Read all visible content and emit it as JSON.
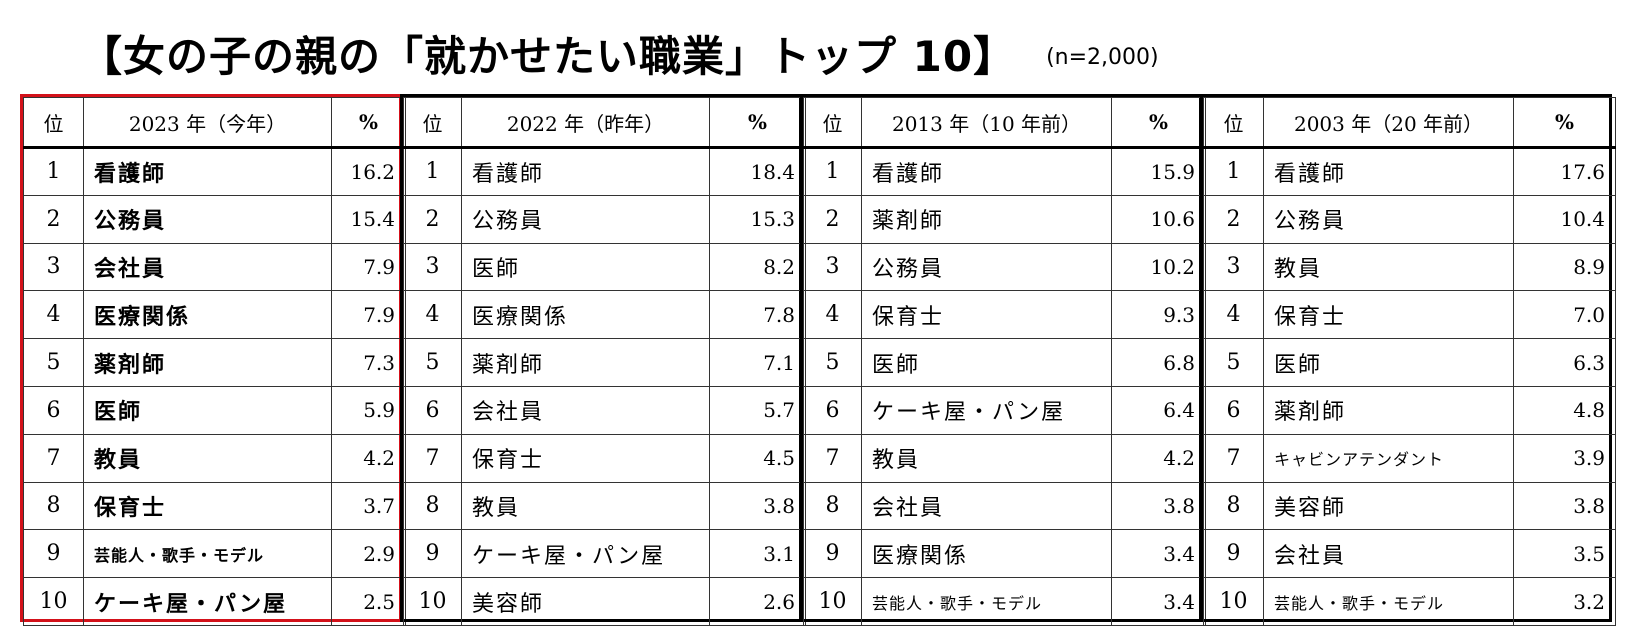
{
  "title": "【女の子の親の「就かせたい職業」トップ 10】",
  "sample": "(n=2,000)",
  "header": {
    "rank": "位",
    "percent": "%"
  },
  "tables": [
    {
      "year_label": "2023 年（今年）",
      "rows": [
        {
          "rank": "1",
          "job": "看護師",
          "pct": "16.2"
        },
        {
          "rank": "2",
          "job": "公務員",
          "pct": "15.4"
        },
        {
          "rank": "3",
          "job": "会社員",
          "pct": "7.9"
        },
        {
          "rank": "4",
          "job": "医療関係",
          "pct": "7.9"
        },
        {
          "rank": "5",
          "job": "薬剤師",
          "pct": "7.3"
        },
        {
          "rank": "6",
          "job": "医師",
          "pct": "5.9"
        },
        {
          "rank": "7",
          "job": "教員",
          "pct": "4.2"
        },
        {
          "rank": "8",
          "job": "保育士",
          "pct": "3.7"
        },
        {
          "rank": "9",
          "job": "芸能人・歌手・モデル",
          "pct": "2.9"
        },
        {
          "rank": "10",
          "job": "ケーキ屋・パン屋",
          "pct": "2.5"
        }
      ]
    },
    {
      "year_label": "2022 年（昨年）",
      "rows": [
        {
          "rank": "1",
          "job": "看護師",
          "pct": "18.4"
        },
        {
          "rank": "2",
          "job": "公務員",
          "pct": "15.3"
        },
        {
          "rank": "3",
          "job": "医師",
          "pct": "8.2"
        },
        {
          "rank": "4",
          "job": "医療関係",
          "pct": "7.8"
        },
        {
          "rank": "5",
          "job": "薬剤師",
          "pct": "7.1"
        },
        {
          "rank": "6",
          "job": "会社員",
          "pct": "5.7"
        },
        {
          "rank": "7",
          "job": "保育士",
          "pct": "4.5"
        },
        {
          "rank": "8",
          "job": "教員",
          "pct": "3.8"
        },
        {
          "rank": "9",
          "job": "ケーキ屋・パン屋",
          "pct": "3.1"
        },
        {
          "rank": "10",
          "job": "美容師",
          "pct": "2.6"
        }
      ]
    },
    {
      "year_label": "2013 年（10 年前）",
      "rows": [
        {
          "rank": "1",
          "job": "看護師",
          "pct": "15.9"
        },
        {
          "rank": "2",
          "job": "薬剤師",
          "pct": "10.6"
        },
        {
          "rank": "3",
          "job": "公務員",
          "pct": "10.2"
        },
        {
          "rank": "4",
          "job": "保育士",
          "pct": "9.3"
        },
        {
          "rank": "5",
          "job": "医師",
          "pct": "6.8"
        },
        {
          "rank": "6",
          "job": "ケーキ屋・パン屋",
          "pct": "6.4"
        },
        {
          "rank": "7",
          "job": "教員",
          "pct": "4.2"
        },
        {
          "rank": "8",
          "job": "会社員",
          "pct": "3.8"
        },
        {
          "rank": "9",
          "job": "医療関係",
          "pct": "3.4"
        },
        {
          "rank": "10",
          "job": "芸能人・歌手・モデル",
          "pct": "3.4"
        }
      ]
    },
    {
      "year_label": "2003 年（20 年前）",
      "rows": [
        {
          "rank": "1",
          "job": "看護師",
          "pct": "17.6"
        },
        {
          "rank": "2",
          "job": "公務員",
          "pct": "10.4"
        },
        {
          "rank": "3",
          "job": "教員",
          "pct": "8.9"
        },
        {
          "rank": "4",
          "job": "保育士",
          "pct": "7.0"
        },
        {
          "rank": "5",
          "job": "医師",
          "pct": "6.3"
        },
        {
          "rank": "6",
          "job": "薬剤師",
          "pct": "4.8"
        },
        {
          "rank": "7",
          "job": "キャビンアテンダント",
          "pct": "3.9"
        },
        {
          "rank": "8",
          "job": "美容師",
          "pct": "3.8"
        },
        {
          "rank": "9",
          "job": "会社員",
          "pct": "3.5"
        },
        {
          "rank": "10",
          "job": "芸能人・歌手・モデル",
          "pct": "3.2"
        }
      ]
    }
  ],
  "colors": {
    "highlight_border": "#d3111a",
    "border": "#000000"
  }
}
